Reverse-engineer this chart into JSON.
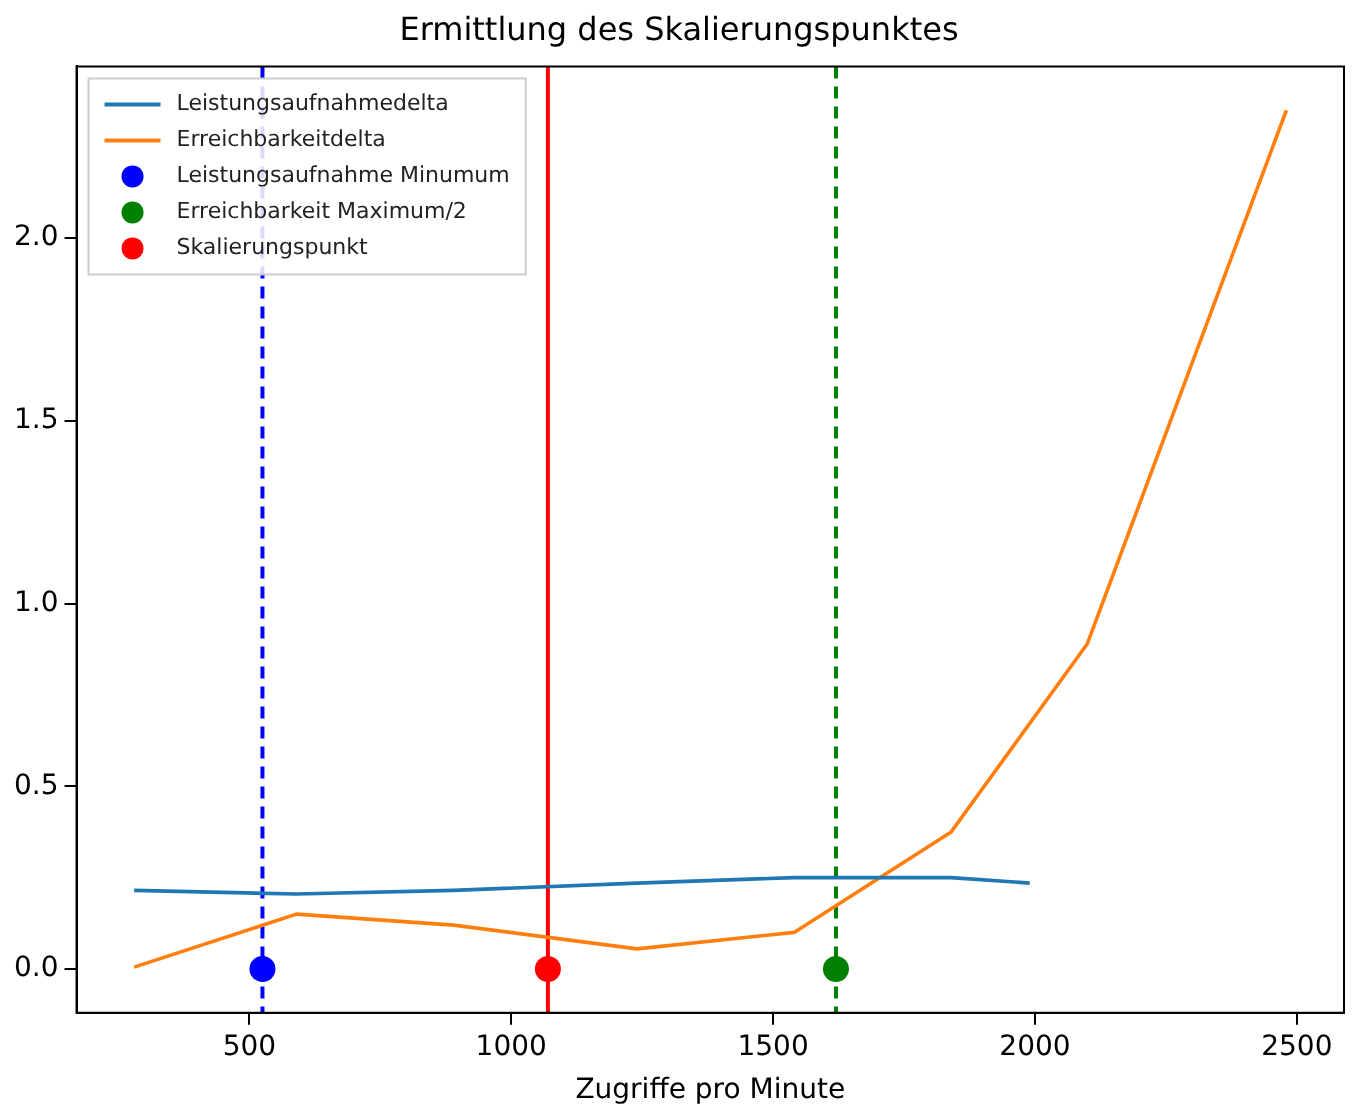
{
  "chart_data": {
    "type": "line",
    "title": "Ermittlung des Skalierungspunktes",
    "xlabel": "Zugriffe pro Minute",
    "xlim": [
      170,
      2590
    ],
    "xticks": [
      500,
      1000,
      1500,
      2000,
      2500
    ],
    "ylim": [
      -0.12,
      2.47
    ],
    "yticks": [
      {
        "value": 0,
        "label": "0.0"
      },
      {
        "value": 0.5,
        "label": "0.5"
      },
      {
        "value": 1,
        "label": "1.0"
      },
      {
        "value": 1.5,
        "label": "1.5"
      },
      {
        "value": 2,
        "label": "2.0"
      }
    ],
    "grid": false,
    "legend": "top left",
    "series": [
      {
        "name": "Leistungsaufnahmedelta",
        "color": "#1f77b4",
        "x": [
          280,
          590,
          890,
          1240,
          1540,
          1840,
          1990
        ],
        "values": [
          0.215,
          0.205,
          0.215,
          0.235,
          0.25,
          0.25,
          0.235
        ]
      },
      {
        "name": "Erreichbarkeitdelta",
        "color": "#ff7f0e",
        "x": [
          280,
          590,
          890,
          1240,
          1540,
          1840,
          2100,
          2480
        ],
        "values": [
          0.005,
          0.15,
          0.12,
          0.055,
          0.1,
          0.375,
          0.89,
          2.35
        ]
      },
      {
        "name": "Leistungsaufnahme Minumum",
        "type": "scatter",
        "marker": "circle",
        "color": "#0000ff",
        "x": [
          525
        ],
        "values": [
          0
        ]
      },
      {
        "name": "Erreichbarkeit Maximum/2",
        "type": "scatter",
        "marker": "circle",
        "color": "#008000",
        "x": [
          1620
        ],
        "values": [
          0
        ]
      },
      {
        "name": "Skalierungspunkt",
        "type": "scatter",
        "marker": "circle",
        "color": "#ff0000",
        "x": [
          1070
        ],
        "values": [
          0
        ]
      }
    ],
    "ref_lines": [
      {
        "axis": "x",
        "value": 525,
        "color": "#0000ff",
        "line_style": "dashed"
      },
      {
        "axis": "x",
        "value": 1620,
        "color": "#008000",
        "line_style": "dashed"
      },
      {
        "axis": "x",
        "value": 1070,
        "color": "#ff0000",
        "line_style": "solid"
      }
    ]
  }
}
